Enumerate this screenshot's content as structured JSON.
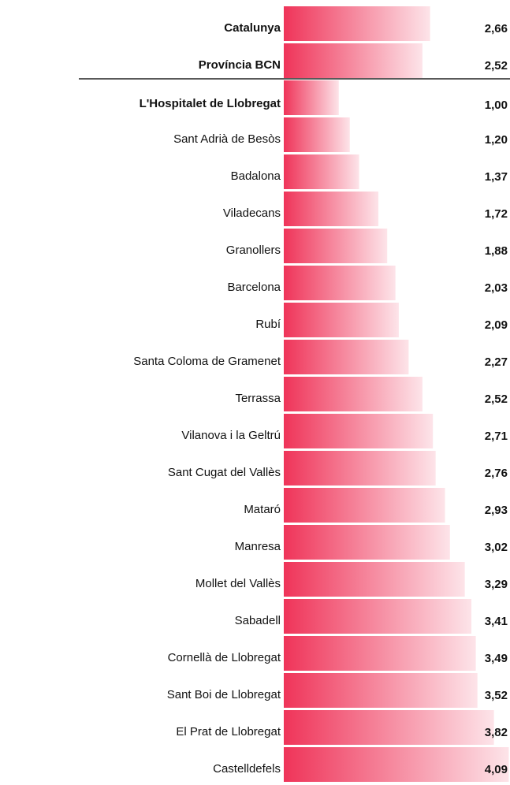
{
  "chart_data": {
    "type": "bar",
    "orientation": "horizontal",
    "color": "#ef3459",
    "categories": [
      "Catalunya",
      "Província BCN",
      "L'Hospitalet de Llobregat",
      "Sant Adrià de Besòs",
      "Badalona",
      "Viladecans",
      "Granollers",
      "Barcelona",
      "Rubí",
      "Santa Coloma de Gramenet",
      "Terrassa",
      "Vilanova i la Geltrú",
      "Sant Cugat del Vallès",
      "Mataró",
      "Manresa",
      "Mollet del Vallès",
      "Sabadell",
      "Cornellà de Llobregat",
      "Sant Boi de Llobregat",
      "El Prat de Llobregat",
      "Castelldefels"
    ],
    "values": [
      2.66,
      2.52,
      1.0,
      1.2,
      1.37,
      1.72,
      1.88,
      2.03,
      2.09,
      2.27,
      2.52,
      2.71,
      2.76,
      2.93,
      3.02,
      3.29,
      3.41,
      3.49,
      3.52,
      3.82,
      4.09
    ],
    "value_labels": [
      "2,66",
      "2,52",
      "1,00",
      "1,20",
      "1,37",
      "1,72",
      "1,88",
      "2,03",
      "2,09",
      "2,27",
      "2,52",
      "2,71",
      "2,76",
      "2,93",
      "3,02",
      "3,29",
      "3,41",
      "3,49",
      "3,52",
      "3,82",
      "4,09"
    ]
  }
}
